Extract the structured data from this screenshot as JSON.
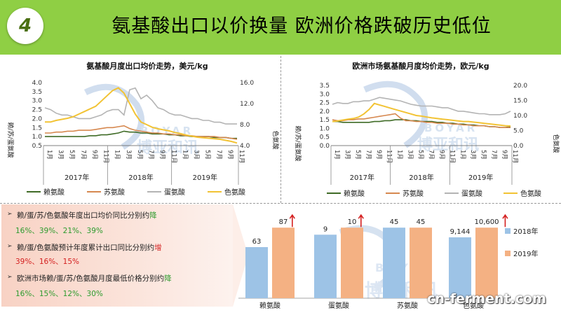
{
  "header": {
    "badge": "4",
    "title": "氨基酸出口以价换量 欧洲价格跌破历史低位"
  },
  "watermark": {
    "brand_latin": "BOYAR",
    "brand_cn": "博亚和讯",
    "site": "cn-ferment.com"
  },
  "left_chart": {
    "title": "氨基酸月度出口均价走势，美元/kg",
    "ylabel_left": "赖/苏/蛋氨酸",
    "ylabel_right": "色氨酸",
    "y_left_ticks": [
      "4.0",
      "3.5",
      "3.0",
      "2.5",
      "2.0",
      "1.5",
      "1.0",
      "0.5"
    ],
    "y_right_ticks": [
      "16.0",
      "12.0",
      "8.0",
      "4.0"
    ],
    "month_labels": [
      "1月",
      "3月",
      "5月",
      "7月",
      "9月",
      "11月",
      "1月",
      "3月",
      "5月",
      "7月",
      "9月",
      "11月",
      "1月",
      "3月",
      "5月",
      "7月",
      "9月",
      "11月"
    ],
    "year_labels": [
      "2017年",
      "2018年",
      "2019年"
    ],
    "legend": [
      "赖氨酸",
      "苏氨酸",
      "蛋氨酸",
      "色氨酸"
    ]
  },
  "right_chart": {
    "title": "欧洲市场氨基酸月度均价走势，欧元/kg",
    "ylabel_left": "赖/苏/蛋氨酸",
    "ylabel_right": "色氨酸",
    "y_left_ticks": [
      "3.5",
      "3.0",
      "2.5",
      "2.0",
      "1.5",
      "1.0",
      "0.5",
      "0.0"
    ],
    "y_right_ticks": [
      "20.0",
      "15.0",
      "10.0",
      "5.0",
      "0.0"
    ],
    "month_labels": [
      "1月",
      "3月",
      "5月",
      "7月",
      "9月",
      "11月",
      "1月",
      "3月",
      "5月",
      "7月",
      "9月",
      "11月",
      "1月",
      "3月",
      "5月",
      "7月",
      "9月",
      "11月"
    ],
    "year_labels": [
      "2017年",
      "2018年",
      "2019年"
    ],
    "legend": [
      "赖氨酸",
      "苏氨酸",
      "蛋氨酸",
      "色氨酸"
    ]
  },
  "notes": {
    "marker": "➢",
    "line1_prefix": "赖/蛋/苏/色氨酸年度出口均价同比分别约",
    "line1_verb": "降",
    "line1_values": "16%、39%、21%、39%",
    "line2_prefix": "赖/蛋/色氨酸预计年度累计出口同比分别约",
    "line2_verb": "增",
    "line2_values": "39%、16%、15%",
    "line3_prefix": "欧洲市场赖/蛋/苏/色氨酸月度最低价格分别约",
    "line3_verb": "降",
    "line3_values": "16%、15%、12%、30%"
  },
  "colors": {
    "lys": "#3f6b26",
    "thr": "#d6884f",
    "met": "#b4b4b4",
    "trp": "#f2c334",
    "bar2018": "#9dc3e6",
    "bar2019": "#f4b183",
    "up_arrow": "#d42020",
    "header": "#8fcf44"
  },
  "chart_data": [
    {
      "type": "line",
      "title": "氨基酸月度出口均价走势，美元/kg",
      "x": [
        "2017-01",
        "2017-02",
        "2017-03",
        "2017-04",
        "2017-05",
        "2017-06",
        "2017-07",
        "2017-08",
        "2017-09",
        "2017-10",
        "2017-11",
        "2017-12",
        "2018-01",
        "2018-02",
        "2018-03",
        "2018-04",
        "2018-05",
        "2018-06",
        "2018-07",
        "2018-08",
        "2018-09",
        "2018-10",
        "2018-11",
        "2018-12",
        "2019-01",
        "2019-02",
        "2019-03",
        "2019-04",
        "2019-05",
        "2019-06",
        "2019-07",
        "2019-08",
        "2019-09",
        "2019-10",
        "2019-11"
      ],
      "ylim_left": [
        0.5,
        4.0
      ],
      "ylim_right": [
        4.0,
        16.0
      ],
      "series": [
        {
          "name": "赖氨酸",
          "axis": "left",
          "values": [
            1.0,
            1.0,
            1.0,
            1.0,
            1.0,
            1.0,
            1.0,
            1.0,
            1.05,
            1.05,
            1.1,
            1.1,
            1.15,
            1.2,
            1.3,
            1.25,
            1.25,
            1.2,
            1.2,
            1.15,
            1.15,
            1.15,
            1.1,
            1.1,
            1.05,
            1.05,
            1.0,
            1.0,
            1.0,
            1.0,
            0.95,
            0.95,
            0.95,
            0.9,
            0.9
          ]
        },
        {
          "name": "苏氨酸",
          "axis": "left",
          "values": [
            1.2,
            1.2,
            1.25,
            1.25,
            1.3,
            1.3,
            1.35,
            1.35,
            1.35,
            1.4,
            1.45,
            1.5,
            1.5,
            1.55,
            1.6,
            1.45,
            1.35,
            1.3,
            1.25,
            1.2,
            1.2,
            1.15,
            1.15,
            1.1,
            1.1,
            1.05,
            1.05,
            1.0,
            1.0,
            1.0,
            1.0,
            0.95,
            0.95,
            0.9,
            0.85
          ]
        },
        {
          "name": "蛋氨酸",
          "axis": "left",
          "values": [
            2.6,
            2.5,
            2.3,
            2.2,
            2.2,
            2.1,
            2.0,
            2.0,
            2.0,
            2.1,
            2.2,
            2.4,
            2.5,
            2.5,
            2.2,
            3.6,
            3.7,
            3.1,
            3.3,
            3.0,
            2.6,
            2.5,
            2.3,
            2.2,
            2.2,
            2.1,
            2.0,
            2.0,
            1.9,
            1.9,
            1.8,
            1.8,
            1.7,
            1.7,
            1.7
          ]
        },
        {
          "name": "色氨酸",
          "axis": "right",
          "values": [
            8.5,
            8.5,
            8.8,
            9.0,
            9.2,
            9.5,
            10.0,
            10.5,
            11.0,
            11.5,
            12.5,
            13.5,
            14.5,
            15.0,
            14.0,
            12.0,
            10.0,
            8.5,
            8.0,
            7.5,
            7.2,
            7.0,
            6.8,
            6.5,
            6.3,
            6.0,
            5.8,
            5.6,
            5.5,
            5.4,
            5.3,
            5.2,
            5.0,
            4.8,
            4.5
          ]
        }
      ]
    },
    {
      "type": "line",
      "title": "欧洲市场氨基酸月度均价走势，欧元/kg",
      "x": [
        "2017-01",
        "2017-02",
        "2017-03",
        "2017-04",
        "2017-05",
        "2017-06",
        "2017-07",
        "2017-08",
        "2017-09",
        "2017-10",
        "2017-11",
        "2017-12",
        "2018-01",
        "2018-02",
        "2018-03",
        "2018-04",
        "2018-05",
        "2018-06",
        "2018-07",
        "2018-08",
        "2018-09",
        "2018-10",
        "2018-11",
        "2018-12",
        "2019-01",
        "2019-02",
        "2019-03",
        "2019-04",
        "2019-05",
        "2019-06",
        "2019-07",
        "2019-08",
        "2019-09",
        "2019-10",
        "2019-11"
      ],
      "ylim_left": [
        0.0,
        3.5
      ],
      "ylim_right": [
        0.0,
        20.0
      ],
      "series": [
        {
          "name": "赖氨酸",
          "axis": "left",
          "values": [
            1.4,
            1.4,
            1.35,
            1.35,
            1.35,
            1.35,
            1.35,
            1.35,
            1.4,
            1.4,
            1.45,
            1.45,
            1.5,
            1.5,
            1.5,
            1.45,
            1.45,
            1.4,
            1.4,
            1.4,
            1.35,
            1.35,
            1.3,
            1.3,
            1.25,
            1.25,
            1.2,
            1.2,
            1.15,
            1.15,
            1.1,
            1.1,
            1.05,
            1.05,
            1.1
          ]
        },
        {
          "name": "苏氨酸",
          "axis": "left",
          "values": [
            1.5,
            1.45,
            1.45,
            1.5,
            1.5,
            1.55,
            1.55,
            1.6,
            1.65,
            1.7,
            1.75,
            1.8,
            1.85,
            1.6,
            1.45,
            1.45,
            1.4,
            1.4,
            1.35,
            1.35,
            1.3,
            1.3,
            1.3,
            1.25,
            1.25,
            1.2,
            1.2,
            1.15,
            1.15,
            1.15,
            1.1,
            1.1,
            1.05,
            1.05,
            1.05
          ]
        },
        {
          "name": "蛋氨酸",
          "axis": "left",
          "values": [
            2.4,
            2.5,
            2.45,
            2.45,
            2.55,
            2.55,
            2.6,
            2.6,
            2.7,
            2.8,
            2.75,
            2.7,
            2.65,
            2.6,
            2.5,
            2.4,
            2.35,
            2.3,
            2.3,
            2.3,
            2.25,
            2.2,
            2.2,
            2.1,
            2.0,
            2.0,
            1.95,
            1.9,
            1.85,
            1.85,
            1.8,
            1.8,
            1.8,
            1.85,
            2.0
          ]
        },
        {
          "name": "色氨酸",
          "axis": "right",
          "values": [
            8.0,
            8.2,
            8.5,
            8.8,
            9.0,
            9.5,
            10.5,
            12.0,
            14.0,
            13.5,
            13.0,
            12.5,
            12.0,
            11.5,
            11.0,
            10.5,
            10.0,
            9.8,
            9.5,
            9.2,
            9.0,
            8.8,
            8.6,
            8.4,
            8.2,
            8.0,
            8.0,
            7.8,
            7.6,
            7.4,
            7.2,
            7.0,
            6.8,
            6.6,
            6.5
          ]
        }
      ]
    },
    {
      "type": "bar",
      "title": "",
      "categories": [
        "赖氨酸",
        "蛋氨酸",
        "苏氨酸",
        "色氨酸"
      ],
      "series": [
        {
          "name": "2018年",
          "values": [
            63,
            9,
            45,
            9144
          ]
        },
        {
          "name": "2019年",
          "values": [
            87,
            10,
            45,
            10600
          ]
        }
      ],
      "data_labels_2018": [
        "63",
        "9",
        "45",
        "9,144"
      ],
      "data_labels_2019": [
        "87",
        "10",
        "45",
        "10,600"
      ],
      "up_arrow_2019": [
        true,
        true,
        false,
        true
      ],
      "legend": [
        "2018年",
        "2019年"
      ]
    }
  ]
}
